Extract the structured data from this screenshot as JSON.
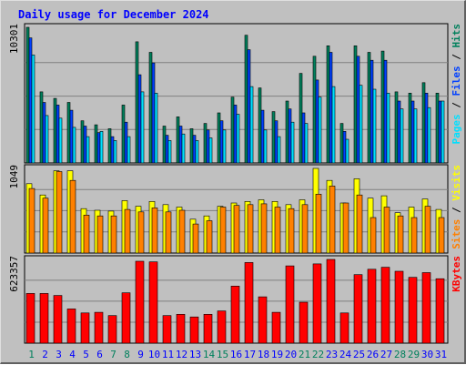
{
  "title": "Daily usage for December 2024",
  "colors": {
    "hits": "#00805c",
    "files": "#0040ff",
    "pages": "#00e0ff",
    "visits": "#ffff00",
    "sites": "#ff8000",
    "kbytes": "#ff0000",
    "title": "#0000ff",
    "weekend_day": "#00805c",
    "weekday": "#0000ff"
  },
  "chart_data": [
    {
      "type": "bar",
      "name": "hits-files-pages",
      "ymax": 10301,
      "ymax_label": "10301",
      "ylabel_parts": [
        {
          "text": "Pages",
          "color": "#00e0ff"
        },
        {
          "text": " / ",
          "color": "#000000"
        },
        {
          "text": "Files",
          "color": "#0040ff"
        },
        {
          "text": " / ",
          "color": "#000000"
        },
        {
          "text": "Hits",
          "color": "#00805c"
        }
      ],
      "series": [
        {
          "name": "Hits",
          "values": [
            10301,
            5400,
            4900,
            4600,
            3200,
            2900,
            2600,
            4400,
            9200,
            8400,
            2800,
            3500,
            2600,
            3000,
            3800,
            5000,
            9700,
            5700,
            3900,
            4700,
            6800,
            8100,
            8900,
            3000,
            8900,
            8400,
            8500,
            5400,
            5300,
            6100,
            5300
          ]
        },
        {
          "name": "Files",
          "values": [
            9500,
            4600,
            4400,
            4000,
            2800,
            2300,
            2000,
            3100,
            6700,
            7600,
            2100,
            2800,
            2100,
            2500,
            3200,
            4400,
            8600,
            4000,
            3200,
            4100,
            3800,
            6300,
            8400,
            2400,
            8100,
            7800,
            7800,
            4700,
            4700,
            5300,
            4700
          ]
        },
        {
          "name": "Pages",
          "values": [
            8200,
            3600,
            3400,
            2700,
            2000,
            2400,
            1700,
            2000,
            5400,
            5300,
            1700,
            2200,
            1700,
            1900,
            2500,
            3700,
            5800,
            2500,
            2000,
            3100,
            3000,
            5000,
            5800,
            1800,
            5900,
            5600,
            5300,
            4100,
            4100,
            4200,
            4700
          ]
        }
      ]
    },
    {
      "type": "bar",
      "name": "visits-sites",
      "ymax": 1049,
      "ymax_label": "1049",
      "ylabel_parts": [
        {
          "text": "Sites",
          "color": "#ff8000"
        },
        {
          "text": " / ",
          "color": "#000000"
        },
        {
          "text": "Visits",
          "color": "#ffff00"
        }
      ],
      "series": [
        {
          "name": "Visits",
          "values": [
            860,
            720,
            1020,
            1020,
            550,
            530,
            520,
            650,
            580,
            640,
            600,
            570,
            420,
            460,
            580,
            620,
            640,
            660,
            640,
            600,
            660,
            1049,
            900,
            620,
            920,
            680,
            710,
            500,
            570,
            670,
            540
          ]
        },
        {
          "name": "Sites",
          "values": [
            800,
            680,
            1010,
            900,
            470,
            460,
            460,
            540,
            510,
            560,
            510,
            530,
            360,
            400,
            570,
            590,
            600,
            610,
            570,
            550,
            600,
            730,
            830,
            620,
            720,
            440,
            570,
            460,
            440,
            580,
            440
          ]
        }
      ]
    },
    {
      "type": "bar",
      "name": "kbytes",
      "ymax": 623357,
      "ymax_label": "623357",
      "ylabel_parts": [
        {
          "text": "KBytes",
          "color": "#ff0000"
        }
      ],
      "series": [
        {
          "name": "KBytes",
          "values": [
            370000,
            370000,
            355000,
            255000,
            225000,
            230000,
            205000,
            375000,
            610000,
            605000,
            205000,
            215000,
            195000,
            215000,
            240000,
            425000,
            600000,
            345000,
            230000,
            575000,
            305000,
            590000,
            623357,
            225000,
            510000,
            550000,
            565000,
            535000,
            490000,
            525000,
            480000
          ]
        }
      ]
    }
  ],
  "days": [
    "1",
    "2",
    "3",
    "4",
    "5",
    "6",
    "7",
    "8",
    "9",
    "10",
    "11",
    "12",
    "13",
    "14",
    "15",
    "16",
    "17",
    "18",
    "19",
    "20",
    "21",
    "22",
    "23",
    "24",
    "25",
    "26",
    "27",
    "28",
    "29",
    "30",
    "31"
  ],
  "weekend_days": [
    1,
    7,
    8,
    14,
    15,
    21,
    22,
    28,
    29
  ]
}
